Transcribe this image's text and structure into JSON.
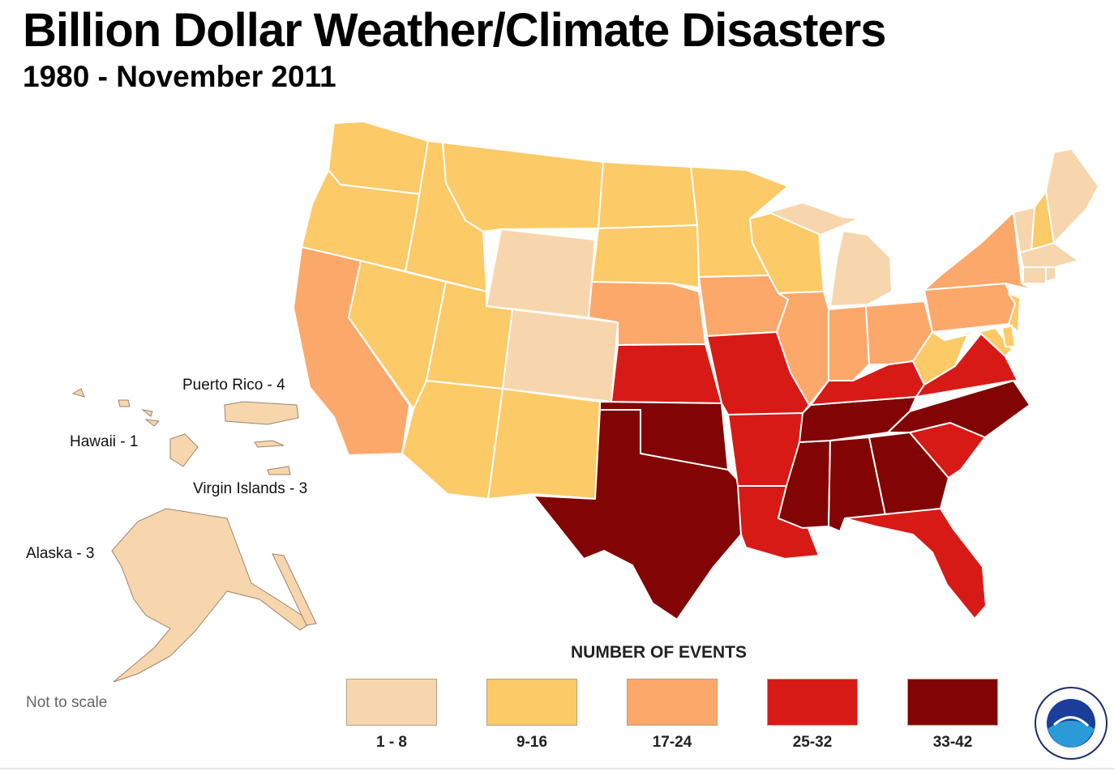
{
  "header": {
    "title": "Billion Dollar Weather/Climate Disasters",
    "subtitle": "1980 - November 2011"
  },
  "colors": {
    "c1": "#f8d6ad",
    "c2": "#fdca68",
    "c3": "#fca86b",
    "c4": "#d81a17",
    "c5": "#820404",
    "border": "#ffffff"
  },
  "territories": {
    "puerto_rico": "Puerto Rico - 4",
    "hawaii": "Hawaii - 1",
    "virgin_islands": "Virgin Islands - 3",
    "alaska": "Alaska - 3"
  },
  "note": "Not to scale",
  "legend": {
    "title": "NUMBER OF EVENTS",
    "items": [
      {
        "label": "1 - 8",
        "color": "#f8d6ad"
      },
      {
        "label": "9-16",
        "color": "#fdca68"
      },
      {
        "label": "17-24",
        "color": "#fca86b"
      },
      {
        "label": "25-32",
        "color": "#d81a17"
      },
      {
        "label": "33-42",
        "color": "#820404"
      }
    ]
  },
  "logo": {
    "text": "NOAA"
  }
}
